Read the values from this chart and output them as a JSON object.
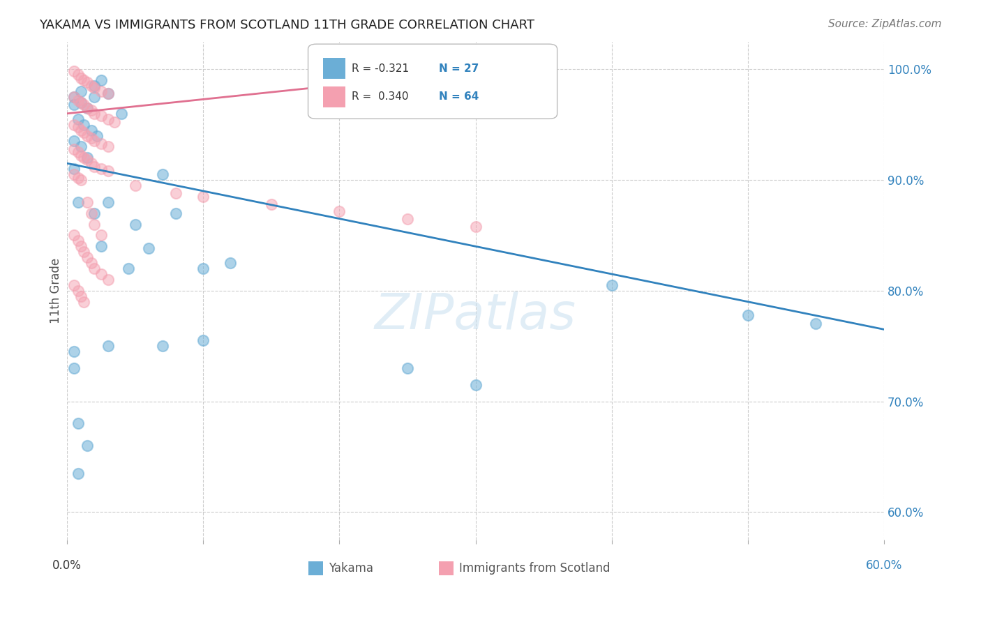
{
  "title": "YAKAMA VS IMMIGRANTS FROM SCOTLAND 11TH GRADE CORRELATION CHART",
  "source": "Source: ZipAtlas.com",
  "ylabel": "11th Grade",
  "ytick_values": [
    0.6,
    0.7,
    0.8,
    0.9,
    1.0
  ],
  "xtick_values": [
    0.0,
    0.1,
    0.2,
    0.3,
    0.4,
    0.5,
    0.6
  ],
  "xlim": [
    0.0,
    0.6
  ],
  "ylim": [
    0.575,
    1.025
  ],
  "watermark": "ZIPatlas",
  "blue_line_x": [
    0.0,
    0.6
  ],
  "blue_line_y": [
    0.915,
    0.765
  ],
  "pink_line_x": [
    0.0,
    0.35
  ],
  "pink_line_y": [
    0.96,
    1.005
  ],
  "blue_scatter_x": [
    0.005,
    0.01,
    0.02,
    0.025,
    0.01,
    0.015,
    0.02,
    0.03,
    0.04,
    0.005,
    0.008,
    0.012,
    0.018,
    0.022,
    0.005,
    0.01,
    0.015,
    0.005,
    0.008,
    0.02,
    0.03,
    0.05,
    0.06,
    0.08,
    0.1,
    0.12,
    0.4,
    0.5,
    0.55,
    0.07,
    0.1,
    0.005,
    0.008,
    0.015,
    0.025,
    0.03,
    0.005,
    0.008,
    0.25,
    0.3,
    0.045,
    0.07
  ],
  "blue_scatter_y": [
    0.975,
    0.98,
    0.985,
    0.99,
    0.97,
    0.965,
    0.975,
    0.978,
    0.96,
    0.968,
    0.955,
    0.95,
    0.945,
    0.94,
    0.935,
    0.93,
    0.92,
    0.91,
    0.88,
    0.87,
    0.88,
    0.86,
    0.838,
    0.87,
    0.82,
    0.825,
    0.805,
    0.778,
    0.77,
    0.905,
    0.755,
    0.73,
    0.68,
    0.66,
    0.84,
    0.75,
    0.745,
    0.635,
    0.73,
    0.715,
    0.82,
    0.75
  ],
  "pink_scatter_x": [
    0.005,
    0.008,
    0.01,
    0.012,
    0.015,
    0.018,
    0.02,
    0.025,
    0.03,
    0.005,
    0.008,
    0.01,
    0.012,
    0.015,
    0.018,
    0.02,
    0.025,
    0.03,
    0.035,
    0.005,
    0.008,
    0.01,
    0.012,
    0.015,
    0.018,
    0.02,
    0.025,
    0.03,
    0.005,
    0.008,
    0.01,
    0.012,
    0.015,
    0.018,
    0.02,
    0.025,
    0.03,
    0.005,
    0.008,
    0.01,
    0.05,
    0.08,
    0.1,
    0.15,
    0.2,
    0.25,
    0.3,
    0.005,
    0.008,
    0.01,
    0.012,
    0.015,
    0.018,
    0.02,
    0.025,
    0.03,
    0.005,
    0.008,
    0.01,
    0.012,
    0.015,
    0.018,
    0.02,
    0.025
  ],
  "pink_scatter_y": [
    0.998,
    0.995,
    0.992,
    0.99,
    0.988,
    0.985,
    0.983,
    0.98,
    0.978,
    0.975,
    0.972,
    0.97,
    0.968,
    0.965,
    0.963,
    0.96,
    0.958,
    0.955,
    0.952,
    0.95,
    0.948,
    0.945,
    0.943,
    0.94,
    0.938,
    0.935,
    0.933,
    0.93,
    0.928,
    0.925,
    0.922,
    0.92,
    0.918,
    0.915,
    0.912,
    0.91,
    0.908,
    0.905,
    0.902,
    0.9,
    0.895,
    0.888,
    0.885,
    0.878,
    0.872,
    0.865,
    0.858,
    0.85,
    0.845,
    0.84,
    0.835,
    0.83,
    0.825,
    0.82,
    0.815,
    0.81,
    0.805,
    0.8,
    0.795,
    0.79,
    0.88,
    0.87,
    0.86,
    0.85
  ],
  "dot_size": 120,
  "blue_color": "#6baed6",
  "pink_color": "#f4a0b0",
  "blue_line_color": "#3182bd",
  "pink_line_color": "#e07090",
  "background_color": "#ffffff",
  "grid_color": "#cccccc"
}
